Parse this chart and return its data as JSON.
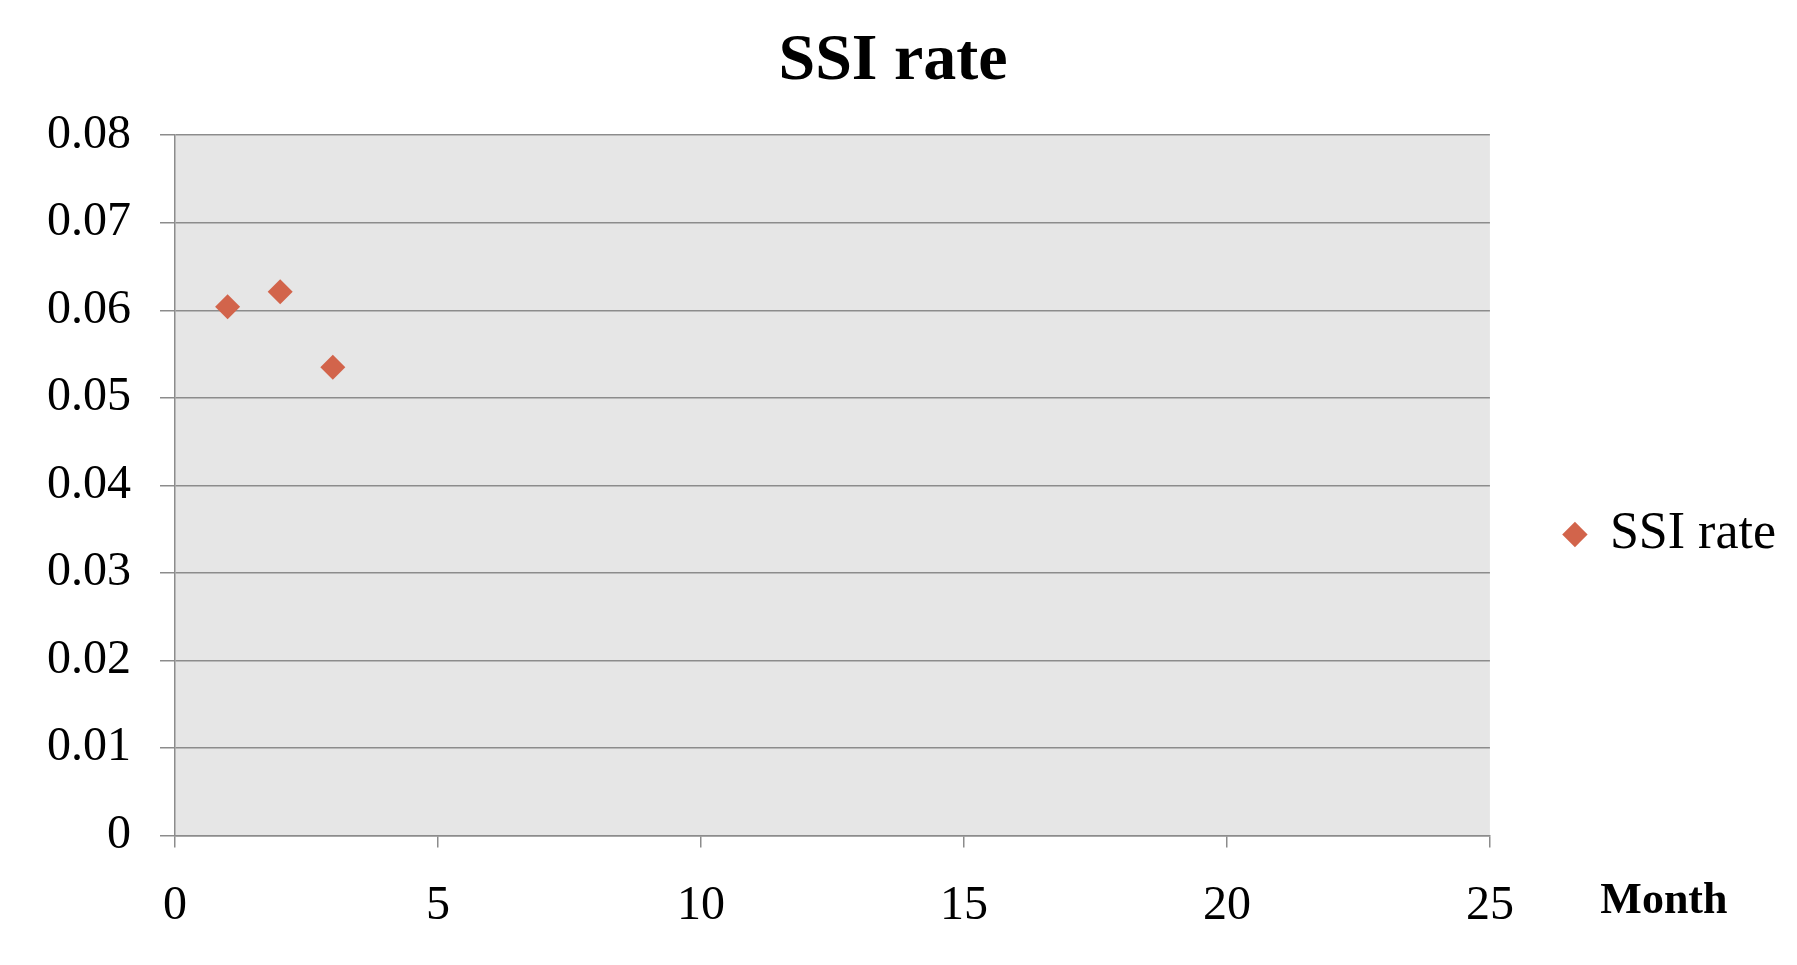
{
  "chart_data": {
    "type": "scatter",
    "title": "SSI rate",
    "xlabel": "Month",
    "x": [
      1,
      2,
      3
    ],
    "series": [
      {
        "name": "SSI rate",
        "color": "#d2644b",
        "values": [
          0.0604,
          0.0621,
          0.0535
        ]
      }
    ],
    "xlim": [
      0,
      25
    ],
    "xticks": [
      0,
      5,
      10,
      15,
      20,
      25
    ],
    "ylim": [
      0,
      0.08
    ],
    "yticks": [
      0,
      0.01,
      0.02,
      0.03,
      0.04,
      0.05,
      0.06,
      0.07,
      0.08
    ],
    "grid": "y",
    "legend": "right",
    "marker": "diamond"
  }
}
